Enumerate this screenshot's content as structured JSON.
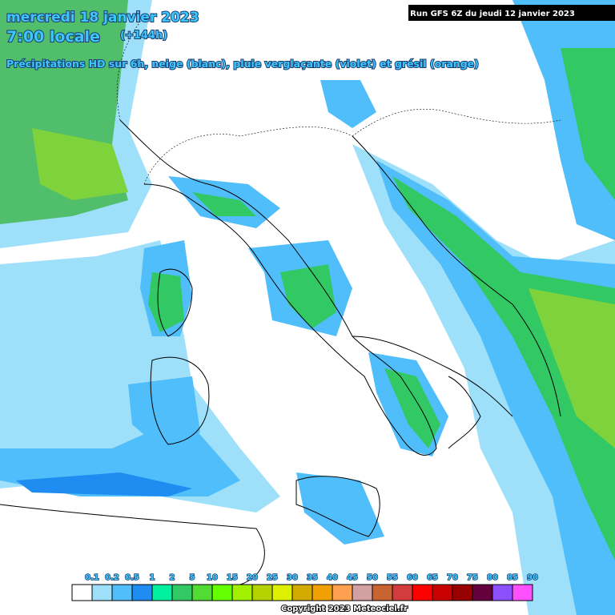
{
  "header": {
    "date": "mercredi 18 janvier 2023",
    "time": "7:00 locale",
    "lead": "(+144h)",
    "description": "Précipitations HD sur 6h, neige (blanc), pluie verglaçante (violet) et grésil (orange)",
    "run": "Run GFS 6Z du jeudi 12 janvier 2023"
  },
  "legend": {
    "colors": [
      "#ffffff",
      "#9ee0fa",
      "#50befa",
      "#1e8cf0",
      "#00f0a0",
      "#32c864",
      "#50dc32",
      "#64ff00",
      "#a0f000",
      "#b4d200",
      "#dcf000",
      "#d2aa00",
      "#f0a000",
      "#ffa050",
      "#d2a0a0",
      "#c86432",
      "#d23c3c",
      "#ff0000",
      "#c80000",
      "#960000",
      "#64003c",
      "#8c50ff",
      "#ff50ff"
    ],
    "labels": [
      "0.1",
      "0.2",
      "0.5",
      "1",
      "2",
      "5",
      "10",
      "15",
      "20",
      "25",
      "30",
      "35",
      "40",
      "45",
      "50",
      "55",
      "60",
      "65",
      "70",
      "75",
      "80",
      "85",
      "90"
    ]
  },
  "footer": {
    "copyright": "Copyright 2023 Meteociel.fr"
  }
}
